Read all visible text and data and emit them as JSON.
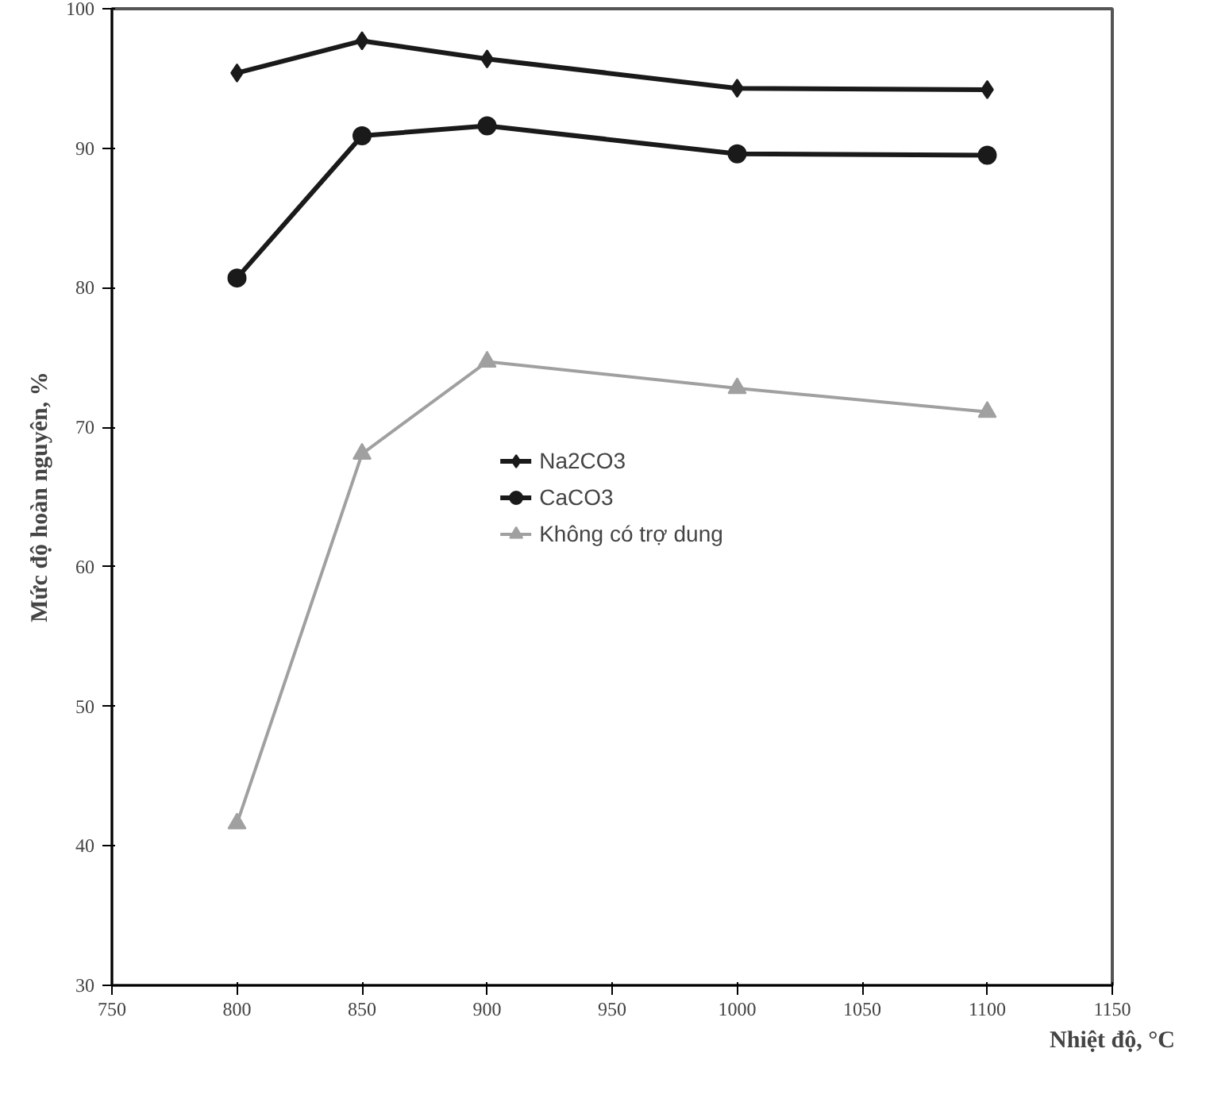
{
  "chart_data": {
    "type": "line",
    "xlabel": "Nhiệt độ, °C",
    "ylabel": "Mức độ hoàn nguyên, %",
    "x": [
      800,
      850,
      900,
      1000,
      1100
    ],
    "xlim": [
      750,
      1150
    ],
    "xticks": [
      750,
      800,
      850,
      900,
      950,
      1000,
      1050,
      1100,
      1150
    ],
    "ylim": [
      30,
      100
    ],
    "yticks": [
      30,
      40,
      50,
      60,
      70,
      80,
      90,
      100
    ],
    "grid": false,
    "legend": "center",
    "series": [
      {
        "name": "Na2CO3",
        "color": "#1a1a1a",
        "marker": "diamond",
        "values": [
          95.4,
          97.7,
          96.4,
          94.3,
          94.2
        ]
      },
      {
        "name": "CaCO3",
        "color": "#1a1a1a",
        "marker": "circle",
        "values": [
          80.7,
          90.9,
          91.6,
          89.6,
          89.5
        ]
      },
      {
        "name": "Không có trợ dung",
        "color": "#a0a0a0",
        "marker": "triangle",
        "values": [
          41.6,
          68.1,
          74.7,
          72.8,
          71.1
        ]
      }
    ]
  }
}
